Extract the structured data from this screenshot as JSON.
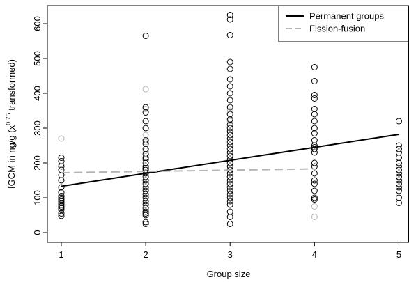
{
  "chart_data": {
    "type": "scatter",
    "x_label": "Group size",
    "y_label": [
      "fGCM in ng/g (x",
      "0.75",
      " transformed)"
    ],
    "xlim": [
      0.835,
      5.12
    ],
    "ylim": [
      -28,
      652
    ],
    "xticks": [
      1,
      2,
      3,
      4,
      5
    ],
    "yticks": [
      0,
      100,
      200,
      300,
      400,
      500,
      600
    ],
    "legend": "top-right",
    "series": [
      {
        "name": "Permanent groups",
        "color": "#000000",
        "dash": false,
        "fit": {
          "x": [
            1,
            5
          ],
          "values": [
            133,
            282
          ]
        },
        "points": [
          {
            "x": 1,
            "values": [
              215,
              205,
              190,
              180,
              165,
              150,
              130,
              115,
              105,
              100,
              95,
              90,
              85,
              80,
              75,
              70,
              65,
              55,
              48
            ]
          },
          {
            "x": 2,
            "values": [
              565,
              360,
              345,
              320,
              300,
              265,
              255,
              240,
              225,
              215,
              210,
              200,
              190,
              185,
              180,
              170,
              160,
              150,
              140,
              130,
              120,
              110,
              100,
              90,
              80,
              70,
              60,
              55,
              50,
              30,
              25
            ]
          },
          {
            "x": 3,
            "values": [
              625,
              612,
              567,
              490,
              470,
              440,
              420,
              400,
              380,
              360,
              340,
              325,
              310,
              300,
              290,
              280,
              270,
              260,
              250,
              240,
              230,
              220,
              210,
              200,
              190,
              180,
              170,
              160,
              150,
              140,
              130,
              120,
              110,
              100,
              90,
              80,
              60,
              45,
              25
            ]
          },
          {
            "x": 4,
            "values": [
              475,
              435,
              395,
              385,
              355,
              340,
              320,
              300,
              285,
              265,
              250,
              245,
              240,
              230,
              200,
              190,
              170,
              150,
              140,
              120,
              100,
              95
            ]
          },
          {
            "x": 5,
            "values": [
              320,
              250,
              240,
              230,
              215,
              200,
              190,
              180,
              170,
              160,
              150,
              140,
              130,
              120,
              100,
              85
            ]
          }
        ]
      },
      {
        "name": "Fission-fusion",
        "color": "#b4b4b4",
        "dash": true,
        "fit": {
          "x": [
            1,
            4
          ],
          "values": [
            172,
            183
          ]
        },
        "points": [
          {
            "x": 1,
            "values": [
              270,
              195
            ]
          },
          {
            "x": 2,
            "values": [
              412,
              355,
              300,
              280,
              260,
              235,
              215,
              175,
              150,
              120,
              80,
              60
            ]
          },
          {
            "x": 3,
            "values": [
              350,
              320,
              300,
              280,
              250,
              220,
              190,
              160,
              140
            ]
          },
          {
            "x": 4,
            "values": [
              230,
              190,
              75,
              45
            ]
          }
        ]
      }
    ]
  }
}
